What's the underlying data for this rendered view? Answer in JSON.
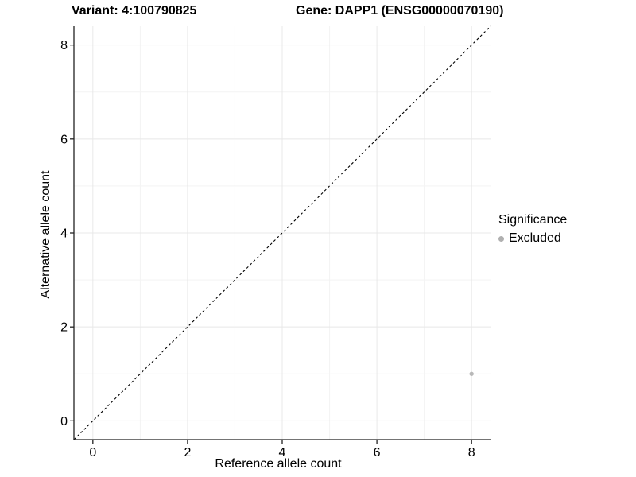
{
  "header": {
    "variant_title": "Variant: 4:100790825",
    "gene_title": "Gene: DAPP1 (ENSG00000070190)"
  },
  "chart_data": {
    "type": "scatter",
    "xlabel": "Reference allele count",
    "ylabel": "Alternative allele count",
    "xlim": [
      -0.4,
      8.4
    ],
    "ylim": [
      -0.4,
      8.4
    ],
    "x_ticks": [
      0,
      2,
      4,
      6,
      8
    ],
    "y_ticks": [
      0,
      2,
      4,
      6,
      8
    ],
    "x_minor_ticks": [
      1,
      3,
      5,
      7
    ],
    "y_minor_ticks": [
      1,
      3,
      5,
      7
    ],
    "grid": "major and minor gridlines on, white background",
    "points": [
      {
        "x": 8,
        "y": 1,
        "series": "Excluded"
      }
    ],
    "reference_line": {
      "type": "identity",
      "style": "dashed",
      "from": [
        -0.4,
        -0.4
      ],
      "to": [
        8.4,
        8.4
      ],
      "color": "#000000"
    },
    "legend": {
      "title": "Significance",
      "position": "right",
      "items": [
        {
          "label": "Excluded",
          "color": "#b0b0b0"
        }
      ]
    },
    "colors": {
      "point": "#b8b8b8",
      "grid_major": "#e8e8e8",
      "grid_minor": "#f3f3f3",
      "axis": "#222222",
      "background": "#ffffff"
    }
  }
}
